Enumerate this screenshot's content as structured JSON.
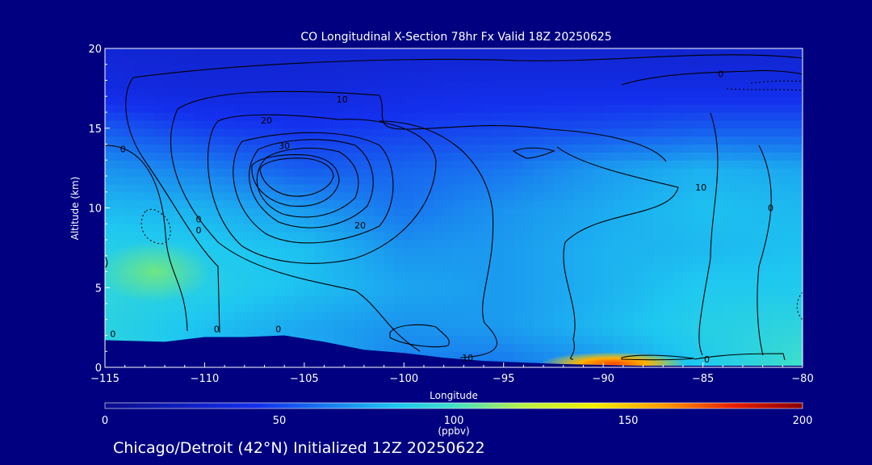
{
  "chart_data": {
    "type": "heatmap",
    "title": "CO Longitudinal X-Section 78hr  Fx Valid 18Z 20250625",
    "xlabel": "Longitude",
    "ylabel": "Altitude (km)",
    "xlim": [
      -115,
      -80
    ],
    "ylim": [
      0,
      20
    ],
    "x_ticks": [
      -115,
      -110,
      -105,
      -100,
      -95,
      -90,
      -85,
      -80
    ],
    "x_tick_labels": [
      "−115",
      "−110",
      "−105",
      "−100",
      "−95",
      "−90",
      "−85",
      "−80"
    ],
    "y_ticks": [
      0,
      5,
      10,
      15,
      20
    ],
    "y_tick_labels": [
      "0",
      "5",
      "10",
      "15",
      "20"
    ],
    "colorbar": {
      "min": 0,
      "max": 200,
      "ticks": [
        0,
        50,
        100,
        150,
        200
      ],
      "tick_labels": [
        "0",
        "50",
        "100",
        "150",
        "200"
      ],
      "units_label": "(ppbv)"
    },
    "contour_labels": [
      {
        "text": "10",
        "lon": -103.1,
        "alt": 16.8
      },
      {
        "text": "20",
        "lon": -106.9,
        "alt": 15.5
      },
      {
        "text": "30",
        "lon": -106.0,
        "alt": 13.9
      },
      {
        "text": "20",
        "lon": -102.2,
        "alt": 8.9
      },
      {
        "text": "10",
        "lon": -85.1,
        "alt": 11.3
      },
      {
        "text": "0",
        "lon": -84.1,
        "alt": 18.4
      },
      {
        "text": "0",
        "lon": -114.1,
        "alt": 13.7
      },
      {
        "text": "0",
        "lon": -110.3,
        "alt": 9.3
      },
      {
        "text": "0",
        "lon": -110.3,
        "alt": 8.6
      },
      {
        "text": "0",
        "lon": -81.6,
        "alt": 10.0
      },
      {
        "text": "0",
        "lon": -109.4,
        "alt": 2.4
      },
      {
        "text": "0",
        "lon": -106.3,
        "alt": 2.4
      },
      {
        "text": "0",
        "lon": -114.6,
        "alt": 2.1
      },
      {
        "text": "10",
        "lon": -96.8,
        "alt": 0.6
      },
      {
        "text": "0",
        "lon": -84.8,
        "alt": 0.5
      }
    ],
    "field": {
      "x": [
        -115,
        -110,
        -105,
        -100,
        -95,
        -90,
        -85,
        -80
      ],
      "y": [
        0,
        2.5,
        5,
        7.5,
        10,
        12.5,
        15,
        17.5,
        20
      ],
      "z": [
        [
          95,
          80,
          78,
          65,
          62,
          70,
          85,
          100
        ],
        [
          90,
          82,
          75,
          70,
          72,
          80,
          88,
          92
        ],
        [
          92,
          88,
          82,
          75,
          72,
          78,
          85,
          85
        ],
        [
          88,
          85,
          82,
          70,
          72,
          78,
          80,
          82
        ],
        [
          80,
          78,
          72,
          62,
          70,
          76,
          82,
          80
        ],
        [
          70,
          65,
          55,
          58,
          62,
          72,
          78,
          75
        ],
        [
          55,
          48,
          45,
          48,
          50,
          52,
          55,
          55
        ],
        [
          38,
          35,
          35,
          38,
          40,
          40,
          40,
          40
        ],
        [
          32,
          30,
          30,
          30,
          30,
          30,
          30,
          30
        ]
      ],
      "hotspots": [
        {
          "lon": -89.5,
          "alt": 0.25,
          "value": 165
        },
        {
          "lon": -112.5,
          "alt": 6.0,
          "value": 108
        }
      ]
    },
    "terrain_km": {
      "x": [
        -115,
        -112,
        -110,
        -108,
        -106,
        -104,
        -102,
        -100,
        -98,
        -96,
        -94,
        -92,
        -90,
        -88,
        -86,
        -84,
        -82,
        -80
      ],
      "y": [
        1.7,
        1.6,
        1.9,
        1.9,
        2.0,
        1.6,
        1.1,
        0.9,
        0.6,
        0.4,
        0.3,
        0.2,
        0.15,
        0.1,
        0.1,
        0.1,
        0.1,
        0.1
      ]
    }
  },
  "footer": {
    "caption": "Chicago/Detroit (42°N) Initialized 12Z 20250622"
  },
  "colors": {
    "background": "#000080",
    "terrain": "#000080",
    "contour": "#000000",
    "text": "#ffffff"
  }
}
